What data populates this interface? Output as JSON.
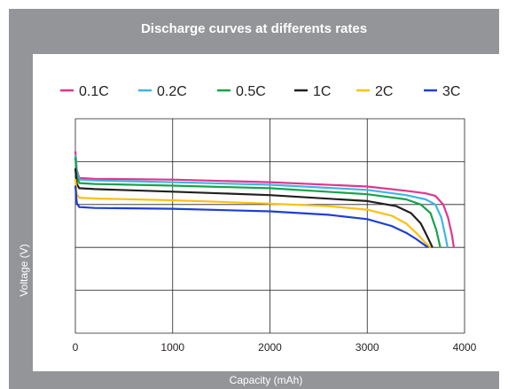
{
  "chart_data": {
    "type": "line",
    "title": "Discharge curves at differents rates",
    "xlabel": "Capacity (mAh)",
    "ylabel": "Voltage (V)",
    "xlim": [
      0,
      4000
    ],
    "ylim": [
      1.5,
      4.0
    ],
    "xticks": [
      "0",
      "1000",
      "2000",
      "3000",
      "4000"
    ],
    "yticks": [
      "1.5",
      "2.0",
      "2.5",
      "3.0",
      "3.5",
      "4.0"
    ],
    "xtick_values": [
      0,
      1000,
      2000,
      3000,
      4000
    ],
    "ytick_values": [
      1.5,
      2.0,
      2.5,
      3.0,
      3.5,
      4.0
    ],
    "grid": true,
    "legend_position": "top",
    "series": [
      {
        "name": "0.1C",
        "color": "#e0358f",
        "points": [
          [
            0,
            3.62
          ],
          [
            15,
            3.4
          ],
          [
            40,
            3.31
          ],
          [
            200,
            3.3
          ],
          [
            1000,
            3.29
          ],
          [
            2000,
            3.26
          ],
          [
            3000,
            3.21
          ],
          [
            3400,
            3.16
          ],
          [
            3600,
            3.13
          ],
          [
            3700,
            3.1
          ],
          [
            3780,
            3.0
          ],
          [
            3830,
            2.85
          ],
          [
            3870,
            2.65
          ],
          [
            3890,
            2.5
          ]
        ]
      },
      {
        "name": "0.2C",
        "color": "#3db6e3",
        "points": [
          [
            0,
            3.58
          ],
          [
            15,
            3.38
          ],
          [
            40,
            3.29
          ],
          [
            200,
            3.28
          ],
          [
            1000,
            3.26
          ],
          [
            2000,
            3.23
          ],
          [
            3000,
            3.17
          ],
          [
            3400,
            3.11
          ],
          [
            3600,
            3.06
          ],
          [
            3700,
            3.0
          ],
          [
            3760,
            2.85
          ],
          [
            3800,
            2.65
          ],
          [
            3825,
            2.5
          ]
        ]
      },
      {
        "name": "0.5C",
        "color": "#16a34a",
        "points": [
          [
            0,
            3.55
          ],
          [
            15,
            3.33
          ],
          [
            40,
            3.25
          ],
          [
            200,
            3.24
          ],
          [
            1000,
            3.22
          ],
          [
            2000,
            3.19
          ],
          [
            3000,
            3.12
          ],
          [
            3400,
            3.06
          ],
          [
            3550,
            3.0
          ],
          [
            3650,
            2.9
          ],
          [
            3710,
            2.7
          ],
          [
            3750,
            2.5
          ]
        ]
      },
      {
        "name": "1C",
        "color": "#231f20",
        "points": [
          [
            0,
            3.42
          ],
          [
            15,
            3.24
          ],
          [
            40,
            3.19
          ],
          [
            200,
            3.18
          ],
          [
            1000,
            3.15
          ],
          [
            2000,
            3.11
          ],
          [
            3000,
            3.04
          ],
          [
            3300,
            2.98
          ],
          [
            3450,
            2.9
          ],
          [
            3550,
            2.78
          ],
          [
            3620,
            2.62
          ],
          [
            3670,
            2.5
          ]
        ]
      },
      {
        "name": "2C",
        "color": "#fdc010",
        "points": [
          [
            0,
            3.3
          ],
          [
            15,
            3.12
          ],
          [
            40,
            3.08
          ],
          [
            200,
            3.07
          ],
          [
            1000,
            3.05
          ],
          [
            2000,
            3.01
          ],
          [
            2600,
            2.98
          ],
          [
            3000,
            2.94
          ],
          [
            3250,
            2.87
          ],
          [
            3400,
            2.78
          ],
          [
            3520,
            2.65
          ],
          [
            3600,
            2.55
          ],
          [
            3650,
            2.5
          ]
        ]
      },
      {
        "name": "3C",
        "color": "#1d3fd6",
        "points": [
          [
            0,
            3.22
          ],
          [
            15,
            3.02
          ],
          [
            40,
            2.97
          ],
          [
            200,
            2.96
          ],
          [
            1000,
            2.95
          ],
          [
            2000,
            2.92
          ],
          [
            2600,
            2.88
          ],
          [
            3000,
            2.83
          ],
          [
            3250,
            2.75
          ],
          [
            3400,
            2.67
          ],
          [
            3500,
            2.6
          ],
          [
            3600,
            2.52
          ],
          [
            3625,
            2.5
          ]
        ]
      }
    ]
  }
}
